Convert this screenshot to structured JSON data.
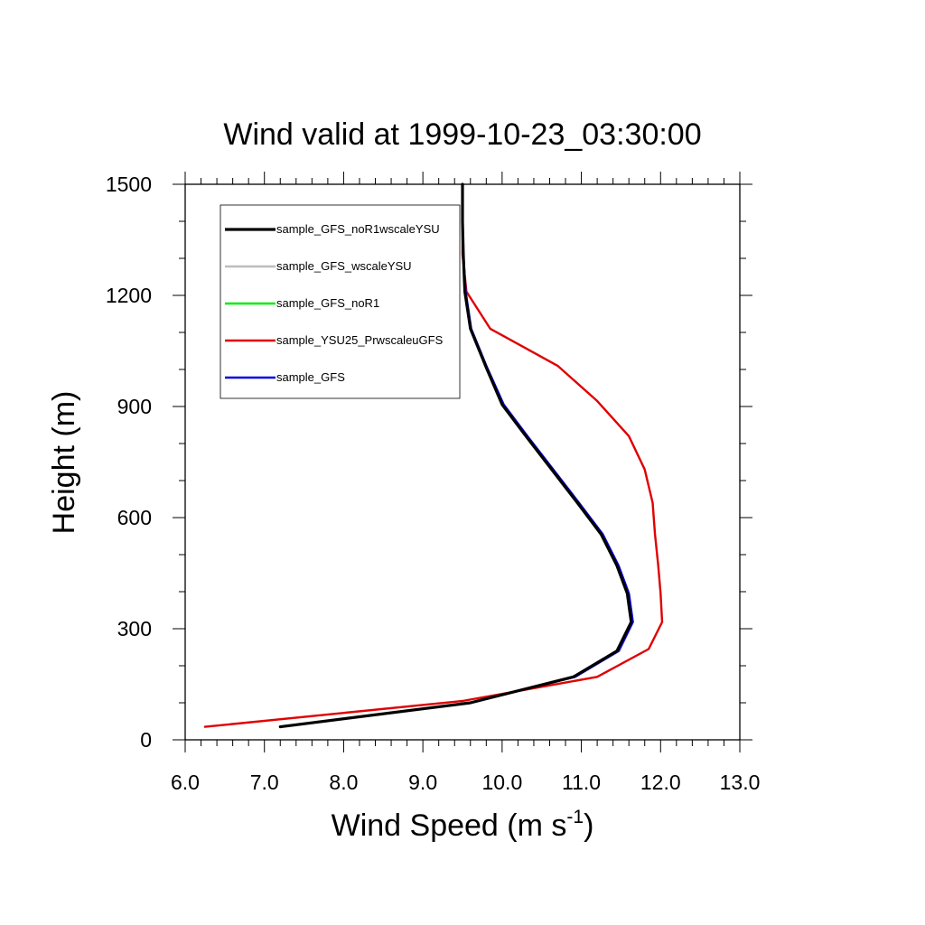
{
  "chart_data": {
    "type": "line",
    "title": "Wind valid at 1999-10-23_03:30:00",
    "xlabel_main": "Wind Speed (m s",
    "xlabel_sup": "-1",
    "xlabel_close": ")",
    "ylabel": "Height (m)",
    "xlim": [
      6.0,
      13.0
    ],
    "ylim": [
      0,
      1500
    ],
    "x_ticks": [
      "6.0",
      "7.0",
      "8.0",
      "9.0",
      "10.0",
      "11.0",
      "12.0",
      "13.0"
    ],
    "y_ticks": [
      "0",
      "300",
      "600",
      "900",
      "1200",
      "1500"
    ],
    "legend_position": "top-left",
    "series": [
      {
        "name": "sample_GFS_noR1wscaleYSU",
        "color": "#000000",
        "points": [
          [
            7.2,
            35
          ],
          [
            9.6,
            100
          ],
          [
            10.9,
            170
          ],
          [
            11.45,
            240
          ],
          [
            11.63,
            318
          ],
          [
            11.58,
            395
          ],
          [
            11.45,
            470
          ],
          [
            11.25,
            555
          ],
          [
            10.95,
            640
          ],
          [
            10.3,
            820
          ],
          [
            10.0,
            905
          ],
          [
            9.8,
            1005
          ],
          [
            9.6,
            1110
          ],
          [
            9.53,
            1210
          ],
          [
            9.51,
            1310
          ],
          [
            9.5,
            1400
          ],
          [
            9.5,
            1500
          ]
        ]
      },
      {
        "name": "sample_GFS_wscaleYSU",
        "color": "#bdbdbd",
        "points": [
          [
            7.2,
            35
          ],
          [
            9.6,
            100
          ],
          [
            10.92,
            170
          ],
          [
            11.48,
            240
          ],
          [
            11.65,
            318
          ],
          [
            11.6,
            395
          ],
          [
            11.47,
            470
          ],
          [
            11.27,
            555
          ],
          [
            10.97,
            640
          ],
          [
            10.32,
            820
          ],
          [
            10.02,
            905
          ],
          [
            9.81,
            1005
          ],
          [
            9.61,
            1110
          ],
          [
            9.54,
            1210
          ],
          [
            9.51,
            1310
          ],
          [
            9.5,
            1400
          ],
          [
            9.5,
            1500
          ]
        ]
      },
      {
        "name": "sample_GFS_noR1",
        "color": "#00ee00",
        "points": [
          [
            7.2,
            35
          ],
          [
            9.6,
            100
          ],
          [
            10.91,
            170
          ],
          [
            11.46,
            240
          ],
          [
            11.64,
            318
          ],
          [
            11.59,
            395
          ],
          [
            11.46,
            470
          ],
          [
            11.26,
            555
          ],
          [
            10.96,
            640
          ],
          [
            10.31,
            820
          ],
          [
            10.01,
            905
          ],
          [
            9.8,
            1005
          ],
          [
            9.6,
            1110
          ],
          [
            9.53,
            1210
          ],
          [
            9.51,
            1310
          ],
          [
            9.5,
            1400
          ],
          [
            9.5,
            1500
          ]
        ]
      },
      {
        "name": "sample_YSU25_PrwscaleuGFS",
        "color": "#e00000",
        "points": [
          [
            6.25,
            35
          ],
          [
            9.5,
            105
          ],
          [
            11.2,
            170
          ],
          [
            11.85,
            245
          ],
          [
            12.02,
            318
          ],
          [
            12.0,
            395
          ],
          [
            11.97,
            470
          ],
          [
            11.93,
            555
          ],
          [
            11.9,
            640
          ],
          [
            11.8,
            730
          ],
          [
            11.6,
            820
          ],
          [
            11.2,
            915
          ],
          [
            10.7,
            1010
          ],
          [
            9.85,
            1110
          ],
          [
            9.55,
            1210
          ],
          [
            9.5,
            1310
          ],
          [
            9.5,
            1400
          ],
          [
            9.5,
            1500
          ]
        ]
      },
      {
        "name": "sample_GFS",
        "color": "#0000dd",
        "points": [
          [
            7.2,
            35
          ],
          [
            9.6,
            100
          ],
          [
            10.92,
            170
          ],
          [
            11.47,
            240
          ],
          [
            11.65,
            318
          ],
          [
            11.6,
            395
          ],
          [
            11.47,
            470
          ],
          [
            11.27,
            555
          ],
          [
            10.97,
            640
          ],
          [
            10.32,
            820
          ],
          [
            10.02,
            905
          ],
          [
            9.81,
            1005
          ],
          [
            9.61,
            1110
          ],
          [
            9.54,
            1210
          ],
          [
            9.51,
            1310
          ],
          [
            9.5,
            1400
          ],
          [
            9.5,
            1500
          ]
        ]
      }
    ]
  }
}
